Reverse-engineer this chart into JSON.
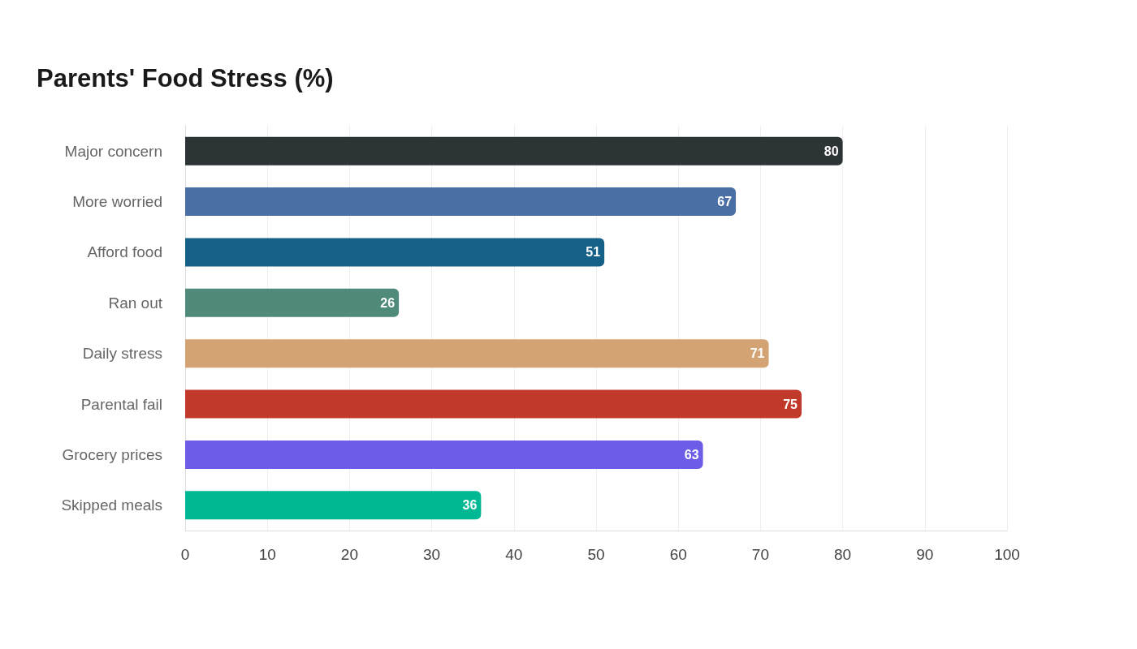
{
  "chart_data": {
    "type": "bar",
    "orientation": "horizontal",
    "title": "Parents' Food Stress (%)",
    "categories": [
      "Major concern",
      "More worried",
      "Afford food",
      "Ran out",
      "Daily stress",
      "Parental fail",
      "Grocery prices",
      "Skipped meals"
    ],
    "values": [
      80,
      67,
      51,
      26,
      71,
      75,
      63,
      36
    ],
    "colors": [
      "#2d3436",
      "#4a6fa5",
      "#166088",
      "#4f8a7a",
      "#d4a373",
      "#c0392b",
      "#6c5ce7",
      "#00b894"
    ],
    "xlim": [
      0,
      100
    ],
    "xticks": [
      0,
      10,
      20,
      30,
      40,
      50,
      60,
      70,
      80,
      90,
      100
    ],
    "grid": "x",
    "data_labels": true
  }
}
